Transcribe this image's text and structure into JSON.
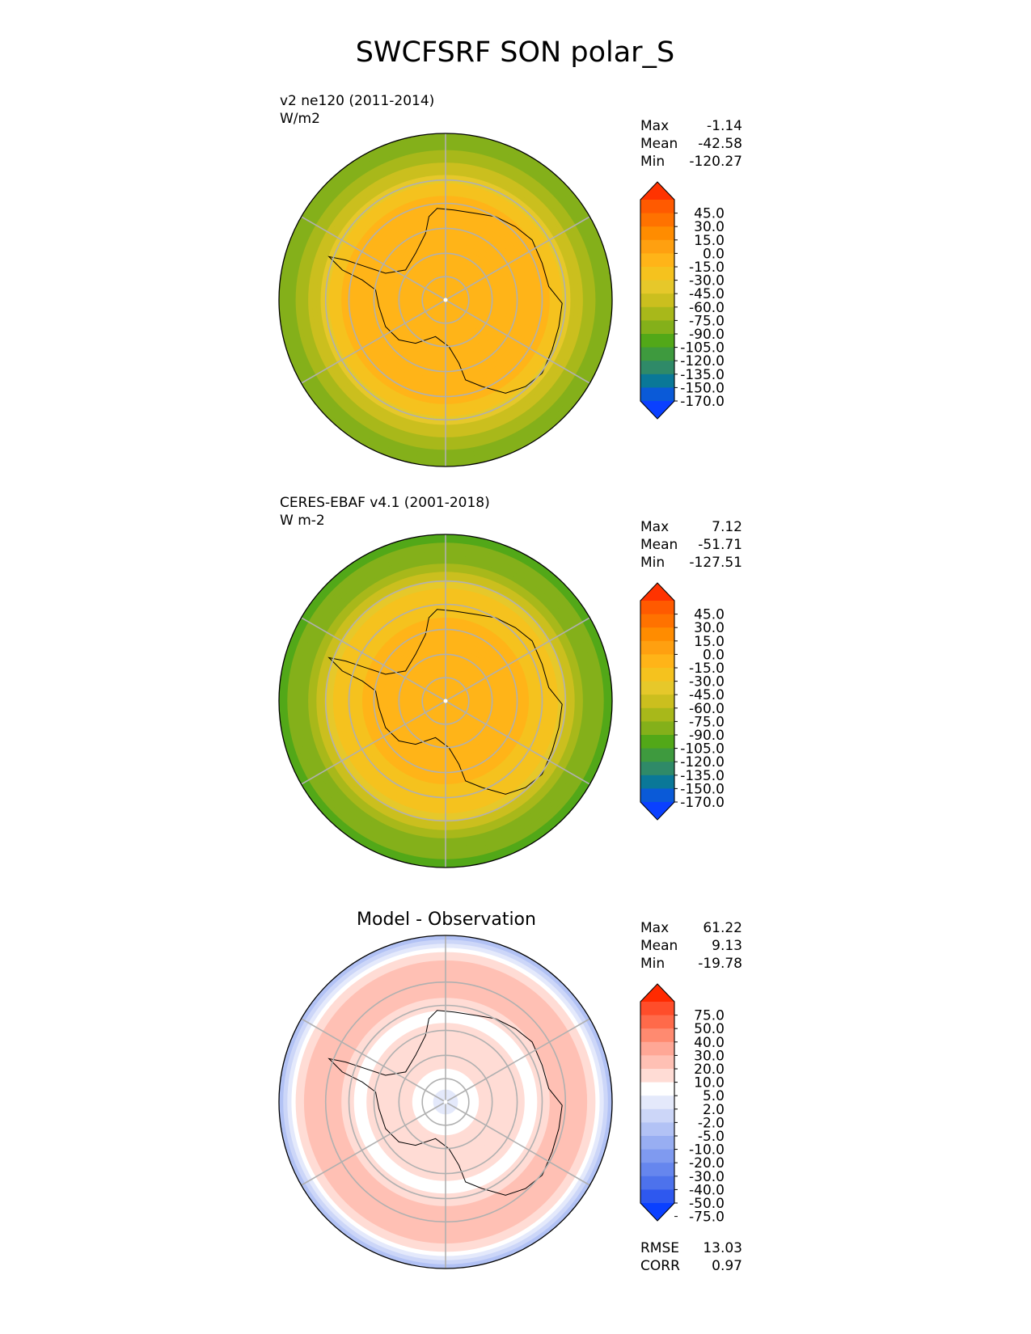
{
  "figure": {
    "title": "SWCFSRF SON polar_S"
  },
  "chart_data": [
    {
      "type": "heatmap",
      "projection": "south-polar-stereographic",
      "title": "",
      "subtitle_line1": "v2 ne120 (2011-2014)",
      "subtitle_line2": "W/m2",
      "stats": [
        {
          "label": "Max",
          "value": "-1.14"
        },
        {
          "label": "Mean",
          "value": "-42.58"
        },
        {
          "label": "Min",
          "value": "-120.27"
        }
      ],
      "colorbar": {
        "extend": "both",
        "tick_labels": [
          "45.0",
          "30.0",
          "15.0",
          "0.0",
          "-15.0",
          "-30.0",
          "-45.0",
          "-60.0",
          "-75.0",
          "-90.0",
          "-105.0",
          "-120.0",
          "-135.0",
          "-150.0",
          "-170.0"
        ],
        "colors": [
          "#ff3300",
          "#ff5a00",
          "#ff7200",
          "#ff8c00",
          "#ffa010",
          "#ffb418",
          "#f5c21e",
          "#e6c82a",
          "#cbbf1e",
          "#a8b81a",
          "#84b01a",
          "#52a818",
          "#3e9a3e",
          "#2f8a68",
          "#0a7898",
          "#0a5ad8",
          "#0a40ff"
        ],
        "over_color": "#ff3300",
        "under_color": "#0a40ff"
      },
      "field": {
        "center_value": -15,
        "profile": [
          {
            "r": 0.0,
            "v": -15
          },
          {
            "r": 0.5,
            "v": -20
          },
          {
            "r": 0.62,
            "v": -28
          },
          {
            "r": 0.7,
            "v": -40
          },
          {
            "r": 0.78,
            "v": -62
          },
          {
            "r": 0.86,
            "v": -85
          },
          {
            "r": 1.0,
            "v": -100
          }
        ]
      }
    },
    {
      "type": "heatmap",
      "projection": "south-polar-stereographic",
      "title": "",
      "subtitle_line1": "CERES-EBAF v4.1 (2001-2018)",
      "subtitle_line2": "W m-2",
      "stats": [
        {
          "label": "Max",
          "value": "7.12"
        },
        {
          "label": "Mean",
          "value": "-51.71"
        },
        {
          "label": "Min",
          "value": "-127.51"
        }
      ],
      "colorbar": {
        "extend": "both",
        "tick_labels": [
          "45.0",
          "30.0",
          "15.0",
          "0.0",
          "-15.0",
          "-30.0",
          "-45.0",
          "-60.0",
          "-75.0",
          "-90.0",
          "-105.0",
          "-120.0",
          "-135.0",
          "-150.0",
          "-170.0"
        ],
        "colors": [
          "#ff3300",
          "#ff5a00",
          "#ff7200",
          "#ff8c00",
          "#ffa010",
          "#ffb418",
          "#f5c21e",
          "#e6c82a",
          "#cbbf1e",
          "#a8b81a",
          "#84b01a",
          "#52a818",
          "#3e9a3e",
          "#2f8a68",
          "#0a7898",
          "#0a5ad8",
          "#0a40ff"
        ],
        "over_color": "#ff3300",
        "under_color": "#0a40ff"
      },
      "field": {
        "center_value": -15,
        "profile": [
          {
            "r": 0.0,
            "v": -15
          },
          {
            "r": 0.45,
            "v": -22
          },
          {
            "r": 0.55,
            "v": -35
          },
          {
            "r": 0.68,
            "v": -45
          },
          {
            "r": 0.78,
            "v": -70
          },
          {
            "r": 0.86,
            "v": -95
          },
          {
            "r": 1.0,
            "v": -110
          }
        ]
      }
    },
    {
      "type": "heatmap",
      "projection": "south-polar-stereographic",
      "title": "Model - Observation",
      "subtitle_line1": "",
      "subtitle_line2": "",
      "stats": [
        {
          "label": "Max",
          "value": "61.22"
        },
        {
          "label": "Mean",
          "value": "9.13"
        },
        {
          "label": "Min",
          "value": "-19.78"
        }
      ],
      "extra_stats": [
        {
          "label": "RMSE",
          "value": "13.03"
        },
        {
          "label": "CORR",
          "value": "0.97"
        }
      ],
      "colorbar": {
        "extend": "both",
        "tick_labels": [
          "75.0",
          "50.0",
          "40.0",
          "30.0",
          "20.0",
          "10.0",
          "5.0",
          "2.0",
          "-2.0",
          "-5.0",
          "-10.0",
          "-20.0",
          "-30.0",
          "-40.0",
          "-50.0",
          "-75.0"
        ],
        "colors": [
          "#ff2a00",
          "#ff4d2a",
          "#ff6a4a",
          "#ff8a70",
          "#ffa796",
          "#ffc0b4",
          "#ffdcd5",
          "#ffffff",
          "#e4e9fb",
          "#ccd6f8",
          "#b2c2f5",
          "#98aef2",
          "#7f9af0",
          "#6686ee",
          "#4d72ec",
          "#2e58ef",
          "#0a40ff"
        ],
        "over_color": "#ff2a00",
        "under_color": "#0a40ff"
      },
      "field": {
        "center_value": 2,
        "profile": [
          {
            "r": 0.0,
            "v": 0
          },
          {
            "r": 0.35,
            "v": 8
          },
          {
            "r": 0.55,
            "v": 4
          },
          {
            "r": 0.68,
            "v": 14
          },
          {
            "r": 0.8,
            "v": 16
          },
          {
            "r": 0.9,
            "v": 6
          },
          {
            "r": 1.0,
            "v": -6
          }
        ]
      }
    }
  ]
}
